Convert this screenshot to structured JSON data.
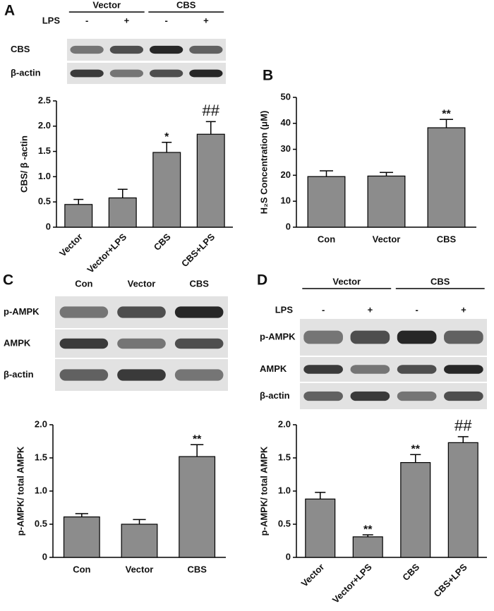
{
  "chart_data": [
    {
      "type": "bar",
      "panel": "A",
      "ylabel": "CBS/ β -actin",
      "categories": [
        "Vector",
        "Vector+LPS",
        "CBS",
        "CBS+LPS"
      ],
      "values": [
        0.45,
        0.58,
        1.48,
        1.84
      ],
      "errors": [
        0.1,
        0.17,
        0.2,
        0.25
      ],
      "annotations": [
        null,
        null,
        "*",
        "##"
      ],
      "color": "#8c8c8c",
      "ylim": [
        0,
        2.5
      ],
      "yticks": [
        0,
        0.5,
        {
          "value": 1,
          "label": "1.0"
        },
        1.5,
        {
          "value": 2,
          "label": "2.0"
        },
        2.5
      ],
      "blot": {
        "groups": [
          "Vector",
          "CBS"
        ],
        "treatment": "LPS",
        "signs": [
          "-",
          "+",
          "-",
          "+"
        ],
        "rows": [
          "CBS",
          "β-actin"
        ]
      }
    },
    {
      "type": "bar",
      "panel": "B",
      "ylabel": "H₂S Concentration (μM)",
      "categories": [
        "Con",
        "Vector",
        "CBS"
      ],
      "values": [
        19.5,
        19.7,
        38.3
      ],
      "errors": [
        2.2,
        1.4,
        3.2
      ],
      "annotations": [
        null,
        null,
        "**"
      ],
      "color": "#8c8c8c",
      "ylim": [
        0,
        50
      ],
      "yticks": [
        0,
        10,
        20,
        30,
        40,
        50
      ]
    },
    {
      "type": "bar",
      "panel": "C",
      "ylabel": "p-AMPK/ total AMPK",
      "categories": [
        "Con",
        "Vector",
        "CBS"
      ],
      "values": [
        0.61,
        0.5,
        1.52
      ],
      "errors": [
        0.05,
        0.07,
        0.18
      ],
      "annotations": [
        null,
        null,
        "**"
      ],
      "color": "#8c8c8c",
      "ylim": [
        0,
        2
      ],
      "yticks": [
        0,
        0.5,
        {
          "value": 1,
          "label": "1.0"
        },
        1.5,
        {
          "value": 2,
          "label": "2.0"
        }
      ],
      "blot": {
        "lanes": [
          "Con",
          "Vector",
          "CBS"
        ],
        "rows": [
          "p-AMPK",
          "AMPK",
          "β-actin"
        ]
      }
    },
    {
      "type": "bar",
      "panel": "D",
      "ylabel": "p-AMPK/ total AMPK",
      "categories": [
        "Vector",
        "Vector+LPS",
        "CBS",
        "CBS+LPS"
      ],
      "values": [
        0.88,
        0.31,
        1.43,
        1.73
      ],
      "errors": [
        0.1,
        0.03,
        0.12,
        0.09
      ],
      "annotations": [
        null,
        "**",
        "**",
        "##"
      ],
      "color": "#8c8c8c",
      "ylim": [
        0,
        2
      ],
      "yticks": [
        0,
        0.5,
        {
          "value": 1,
          "label": "1.0"
        },
        1.5,
        {
          "value": 2,
          "label": "2.0"
        }
      ],
      "blot": {
        "groups": [
          "Vector",
          "CBS"
        ],
        "treatment": "LPS",
        "signs": [
          "-",
          "+",
          "-",
          "+"
        ],
        "rows": [
          "p-AMPK",
          "AMPK",
          "β-actin"
        ]
      }
    }
  ]
}
